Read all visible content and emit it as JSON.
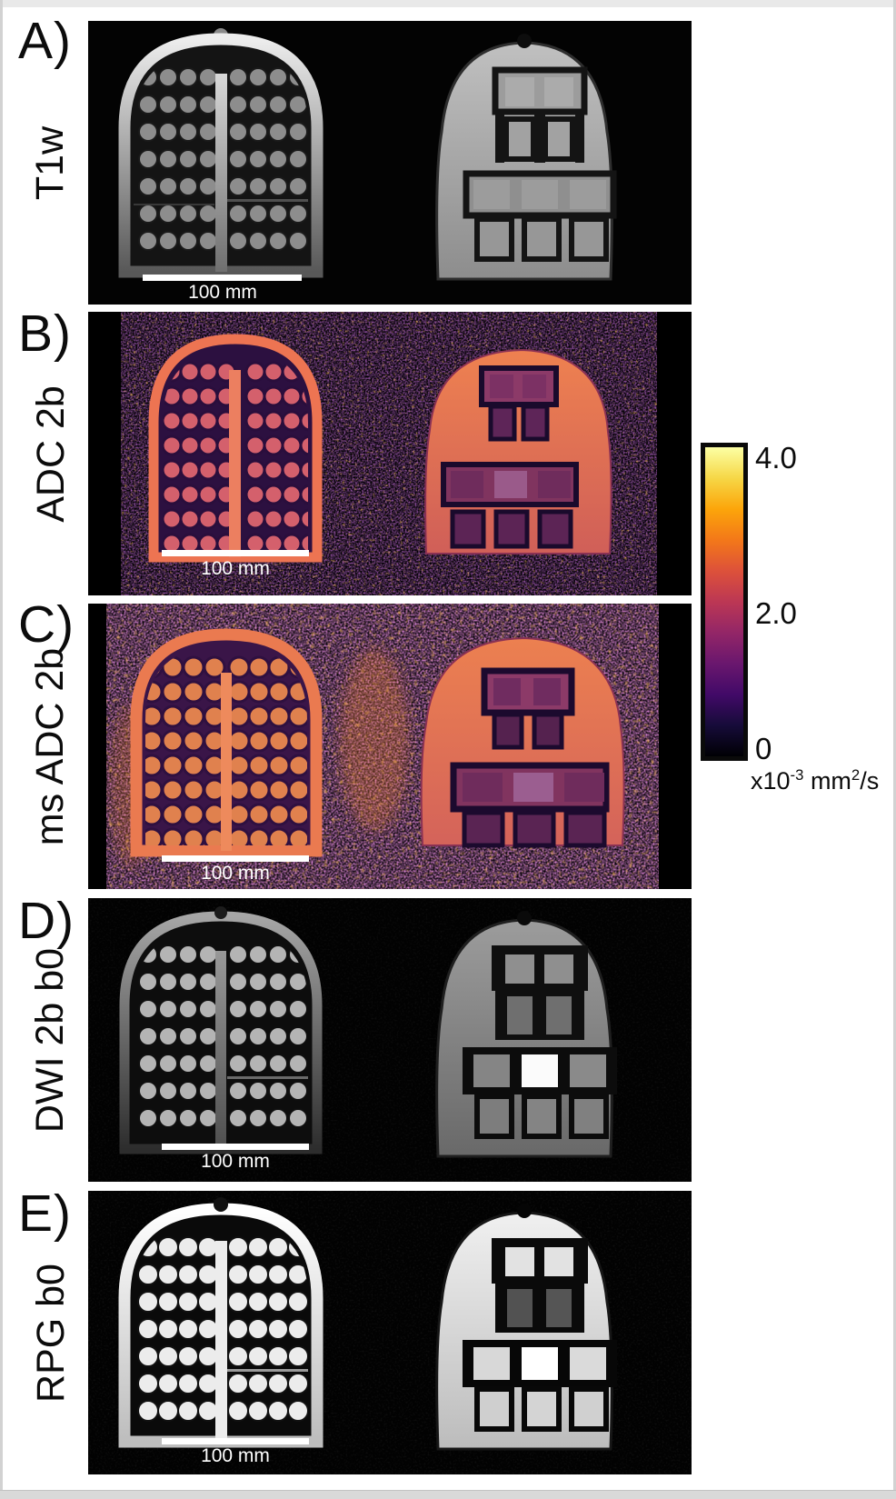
{
  "figure": {
    "panels": [
      {
        "letter": "A)",
        "label": "T1w",
        "scale_bar": "100 mm"
      },
      {
        "letter": "B)",
        "label": "ADC 2b",
        "scale_bar": "100 mm"
      },
      {
        "letter": "C)",
        "label": "ms ADC 2b",
        "scale_bar": "100 mm"
      },
      {
        "letter": "D)",
        "label": "DWI 2b b0",
        "scale_bar": "100 mm"
      },
      {
        "letter": "E)",
        "label": "RPG b0",
        "scale_bar": "100 mm"
      }
    ],
    "colorbar": {
      "ticks": [
        "4.0",
        "2.0",
        "0"
      ],
      "unit": {
        "prefix": "x10",
        "exp": "-3",
        "mid": " mm",
        "exp2": "2",
        "suffix": "/s"
      },
      "colormap_top_to_bottom": [
        "#fcffa4",
        "#f6d746",
        "#fca50a",
        "#f37819",
        "#dd513a",
        "#bc3754",
        "#932667",
        "#6a176e",
        "#420a68",
        "#160b39",
        "#000004"
      ]
    }
  }
}
